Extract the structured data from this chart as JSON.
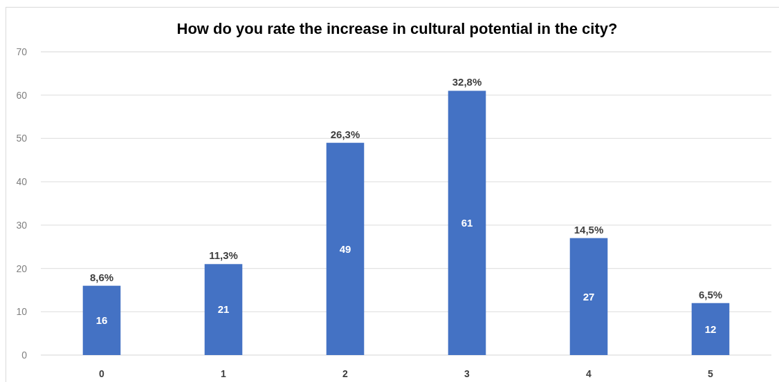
{
  "chart_data": {
    "type": "bar",
    "title": "How do you rate the increase in cultural potential in the city?",
    "categories": [
      "0",
      "1",
      "2",
      "3",
      "4",
      "5"
    ],
    "values": [
      16,
      21,
      49,
      61,
      27,
      12
    ],
    "color": "#4472c4",
    "ylim": [
      0,
      70
    ],
    "yticks": [
      0,
      10,
      20,
      30,
      40,
      50,
      60,
      70
    ],
    "grid": "y",
    "data_labels": true,
    "annotations": [
      {
        "text": "8,6%",
        "x": "0",
        "y": 16
      },
      {
        "text": "11,3%",
        "x": "1",
        "y": 21
      },
      {
        "text": "26,3%",
        "x": "2",
        "y": 49
      },
      {
        "text": "32,8%",
        "x": "3",
        "y": 61
      },
      {
        "text": "14,5%",
        "x": "4",
        "y": 27
      },
      {
        "text": "6,5%",
        "x": "5",
        "y": 12
      }
    ]
  }
}
